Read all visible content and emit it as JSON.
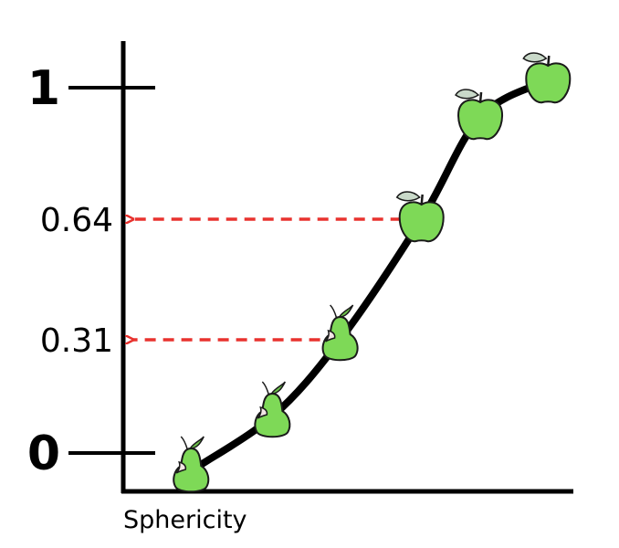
{
  "chart_data": {
    "type": "line",
    "xlabel": "Sphericity",
    "ylabel": "",
    "ylim": [
      0,
      1
    ],
    "yticks": [
      {
        "value": 1,
        "label": "1",
        "style": "big"
      },
      {
        "value": 0.64,
        "label": "0.64",
        "style": "small"
      },
      {
        "value": 0.31,
        "label": "0.31",
        "style": "small"
      },
      {
        "value": 0,
        "label": "0",
        "style": "big"
      }
    ],
    "series": [
      {
        "points": [
          {
            "x": 0.15,
            "y": -0.05,
            "fruit": "pear"
          },
          {
            "x": 0.33,
            "y": 0.1,
            "fruit": "pear"
          },
          {
            "x": 0.48,
            "y": 0.31,
            "fruit": "pear"
          },
          {
            "x": 0.66,
            "y": 0.64,
            "fruit": "apple"
          },
          {
            "x": 0.79,
            "y": 0.92,
            "fruit": "apple"
          },
          {
            "x": 0.94,
            "y": 1.02,
            "fruit": "apple"
          }
        ]
      }
    ],
    "annotations": [
      {
        "type": "arrow-to-axis",
        "point_index": 2,
        "value": 0.31
      },
      {
        "type": "arrow-to-axis",
        "point_index": 3,
        "value": 0.64
      }
    ],
    "colors": {
      "curve": "#000000",
      "axis": "#000000",
      "arrow": "#e8322e",
      "fruit": "#7ed957",
      "fruit_outline": "#1a1a1a",
      "leaf_apple": "#c9d9c9",
      "leaf_pear": "#6cc14a",
      "bite": "#f3e6e6"
    },
    "grid": false,
    "legend": "none"
  }
}
